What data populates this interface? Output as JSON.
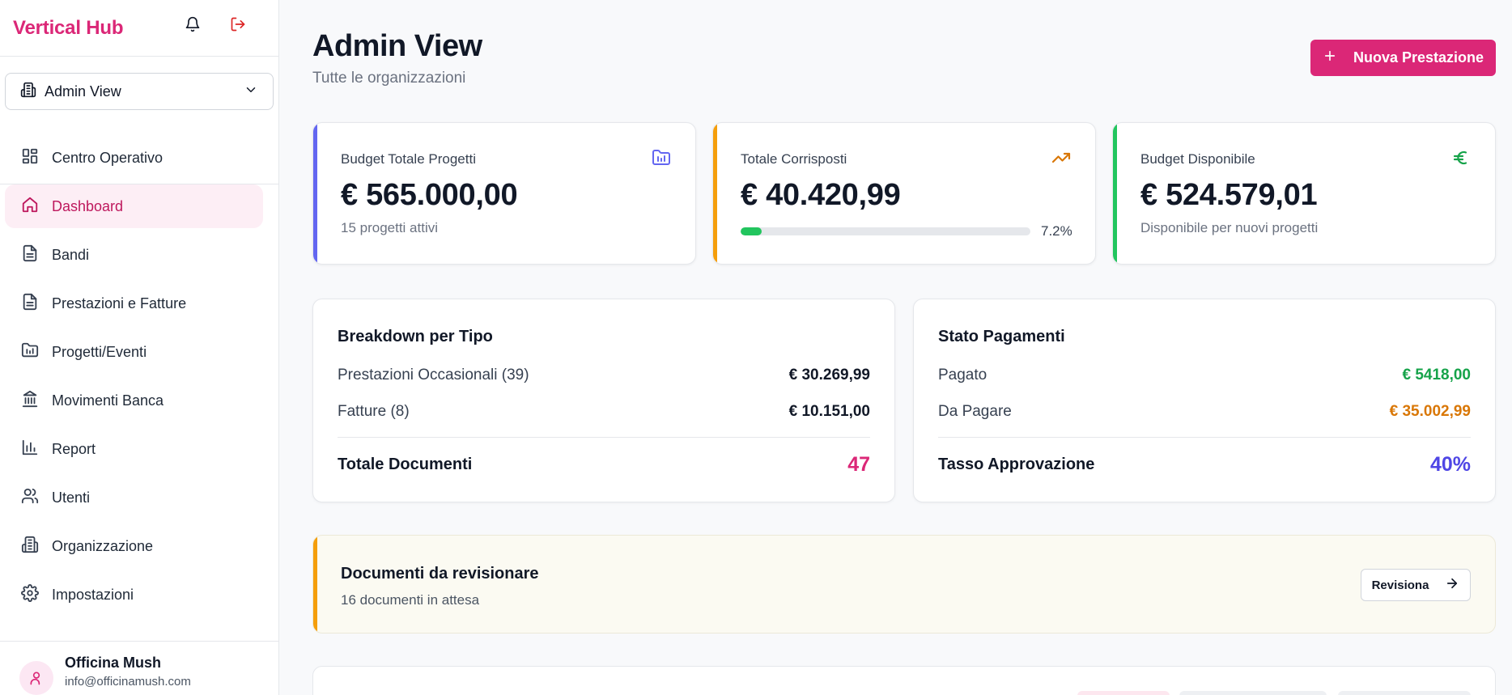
{
  "app": {
    "title": "Vertical Hub"
  },
  "sidebar": {
    "org_selector": {
      "value": "Admin View"
    },
    "items": [
      {
        "label": "Centro Operativo",
        "icon": "grid-icon",
        "active": false
      },
      {
        "label": "Dashboard",
        "icon": "home-icon",
        "active": true
      },
      {
        "label": "Bandi",
        "icon": "document-icon",
        "active": false
      },
      {
        "label": "Prestazioni e Fatture",
        "icon": "document-icon",
        "active": false
      },
      {
        "label": "Progetti/Eventi",
        "icon": "folder-chart-icon",
        "active": false
      },
      {
        "label": "Movimenti Banca",
        "icon": "bank-icon",
        "active": false
      },
      {
        "label": "Report",
        "icon": "bar-chart-icon",
        "active": false
      },
      {
        "label": "Utenti",
        "icon": "users-icon",
        "active": false
      },
      {
        "label": "Organizzazione",
        "icon": "building-icon",
        "active": false
      },
      {
        "label": "Impostazioni",
        "icon": "gear-icon",
        "active": false
      }
    ],
    "user": {
      "name": "Officina Mush",
      "email": "info@officinamush.com"
    }
  },
  "header": {
    "title": "Admin View",
    "subtitle": "Tutte le organizzazioni",
    "new_button": "Nuova Prestazione"
  },
  "stats": [
    {
      "label": "Budget Totale Progetti",
      "value": "€ 565.000,00",
      "note": "15 progetti attivi",
      "accent": "#6366f1",
      "icon": "folder-chart-icon"
    },
    {
      "label": "Totale Corrisposti",
      "value": "€ 40.420,99",
      "progress_percent": 7.2,
      "progress_label": "7.2%",
      "accent": "#f59e0b",
      "icon": "trending-up-icon"
    },
    {
      "label": "Budget Disponibile",
      "value": "€ 524.579,01",
      "note": "Disponibile per nuovi progetti",
      "accent": "#22c55e",
      "icon": "euro-icon"
    }
  ],
  "breakdown": {
    "title": "Breakdown per Tipo",
    "rows": [
      {
        "label": "Prestazioni Occasionali (39)",
        "value": "€ 30.269,99"
      },
      {
        "label": "Fatture (8)",
        "value": "€ 10.151,00"
      }
    ],
    "total_label": "Totale Documenti",
    "total_value": "47",
    "total_color": "#db2777"
  },
  "payments": {
    "title": "Stato Pagamenti",
    "rows": [
      {
        "label": "Pagato",
        "value": "€ 5418,00",
        "color": "#16a34a"
      },
      {
        "label": "Da Pagare",
        "value": "€ 35.002,99",
        "color": "#d97706"
      }
    ],
    "total_label": "Tasso Approvazione",
    "total_value": "40%",
    "total_color": "#4f46e5"
  },
  "review": {
    "title": "Documenti da revisionare",
    "subtitle": "16 documenti in attesa",
    "button": "Revisiona"
  },
  "colors": {
    "brand": "#db2777"
  }
}
